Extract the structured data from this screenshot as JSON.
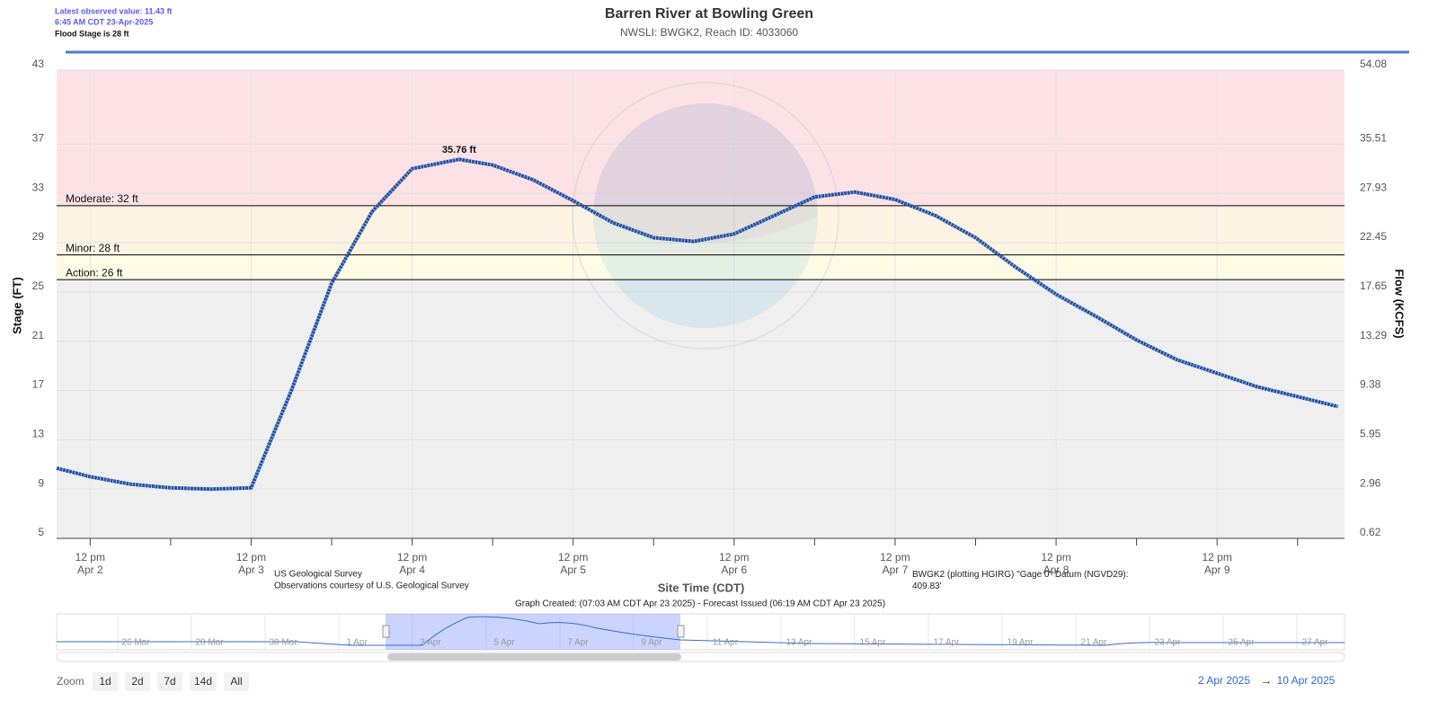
{
  "header": {
    "latest": "Latest observed value: 11.43 ft",
    "time": "6:45 AM CDT 23-Apr-2025",
    "flood_stage": "Flood Stage is 28 ft"
  },
  "chart_data": {
    "type": "line",
    "title": "Barren River at Bowling Green",
    "subtitle": "NWSLI: BWGK2, Reach ID: 4033060",
    "y_label": "Stage (FT)",
    "y2_label": "Flow (KCFS)",
    "x_label": "Site Time (CDT)",
    "x": [
      "2025-04-02T07:00",
      "2025-04-02T12:00",
      "2025-04-02T18:00",
      "2025-04-03T00:00",
      "2025-04-03T06:00",
      "2025-04-03T12:00",
      "2025-04-03T18:00",
      "2025-04-04T00:00",
      "2025-04-04T06:00",
      "2025-04-04T12:00",
      "2025-04-04T19:00",
      "2025-04-05T00:00",
      "2025-04-05T06:00",
      "2025-04-05T12:00",
      "2025-04-05T18:00",
      "2025-04-06T00:00",
      "2025-04-06T06:00",
      "2025-04-06T12:00",
      "2025-04-06T18:00",
      "2025-04-07T00:00",
      "2025-04-07T06:00",
      "2025-04-07T12:00",
      "2025-04-07T18:00",
      "2025-04-08T00:00",
      "2025-04-08T06:00",
      "2025-04-08T12:00",
      "2025-04-08T18:00",
      "2025-04-09T00:00",
      "2025-04-09T06:00",
      "2025-04-09T12:00",
      "2025-04-09T18:00",
      "2025-04-10T00:00",
      "2025-04-10T06:00"
    ],
    "series": [
      {
        "color": "#2354a8",
        "values": [
          10.7,
          10.0,
          9.4,
          9.1,
          9.0,
          9.1,
          17.0,
          25.7,
          31.5,
          35.0,
          35.76,
          35.3,
          34.1,
          32.4,
          30.6,
          29.4,
          29.1,
          29.7,
          31.2,
          32.7,
          33.1,
          32.5,
          31.2,
          29.4,
          27.0,
          24.8,
          23.0,
          21.1,
          19.5,
          18.4,
          17.3,
          16.5,
          15.7
        ],
        "value_labels": [
          null,
          null,
          null,
          null,
          null,
          null,
          null,
          null,
          null,
          null,
          "35.76 ft",
          null,
          null,
          null,
          null,
          null,
          null,
          null,
          null,
          null,
          null,
          null,
          null,
          null,
          null,
          null,
          null,
          null,
          null,
          null,
          null,
          null,
          null
        ]
      }
    ],
    "xlim": [
      "2025-04-02T07:00",
      "2025-04-10T07:00"
    ],
    "xticks": [
      {
        "value": "2025-04-02T12:00",
        "label": [
          "12 pm",
          "Apr 2"
        ]
      },
      {
        "value": "2025-04-03T12:00",
        "label": [
          "12 pm",
          "Apr 3"
        ]
      },
      {
        "value": "2025-04-04T12:00",
        "label": [
          "12 pm",
          "Apr 4"
        ]
      },
      {
        "value": "2025-04-05T12:00",
        "label": [
          "12 pm",
          "Apr 5"
        ]
      },
      {
        "value": "2025-04-06T12:00",
        "label": [
          "12 pm",
          "Apr 6"
        ]
      },
      {
        "value": "2025-04-07T12:00",
        "label": [
          "12 pm",
          "Apr 7"
        ]
      },
      {
        "value": "2025-04-08T12:00",
        "label": [
          "12 pm",
          "Apr 8"
        ]
      },
      {
        "value": "2025-04-09T12:00",
        "label": [
          "12 pm",
          "Apr 9"
        ]
      }
    ],
    "ylim": [
      5,
      43
    ],
    "yticks": [
      5,
      9,
      13,
      17,
      21,
      25,
      29,
      33,
      37,
      43
    ],
    "y2lim": [
      0.62,
      54.08
    ],
    "y2ticks": [
      0.62,
      2.96,
      5.95,
      9.38,
      13.29,
      17.65,
      22.45,
      27.93,
      35.51,
      54.08
    ],
    "grid": true,
    "plot_background": "#efefef",
    "thresholds": [
      {
        "label": "Action: 26 ft",
        "value": 26,
        "band_color": "#fdfbe4"
      },
      {
        "label": "Minor: 28 ft",
        "value": 28,
        "band_color": "#fdf3e2"
      },
      {
        "label": "Moderate: 32 ft",
        "value": 32,
        "band_color": "#fde2e5"
      }
    ]
  },
  "credits": {
    "source": "US Geological Survey",
    "courtesy": "Observations courtesy of U.S. Geological Survey",
    "datum": "BWGK2 (plotting HGIRG) \"Gage 0\" Datum (NGVD29): 409.83'",
    "created": "Graph Created: (07:03 AM CDT Apr 23 2025) - Forecast Issued (06:19 AM CDT Apr 23 2025)"
  },
  "navigator": {
    "labels": [
      "26 Mar",
      "28 Mar",
      "30 Mar",
      "1 Apr",
      "3 Apr",
      "5 Apr",
      "7 Apr",
      "9 Apr",
      "11 Apr",
      "13 Apr",
      "15 Apr",
      "17 Apr",
      "19 Apr",
      "21 Apr",
      "23 Apr",
      "25 Apr",
      "27 Apr"
    ]
  },
  "zoom": {
    "label": "Zoom",
    "buttons": [
      "1d",
      "2d",
      "7d",
      "14d",
      "All"
    ]
  },
  "range": {
    "from": "2 Apr 2025",
    "arrow": "→",
    "to": "10 Apr 2025"
  }
}
